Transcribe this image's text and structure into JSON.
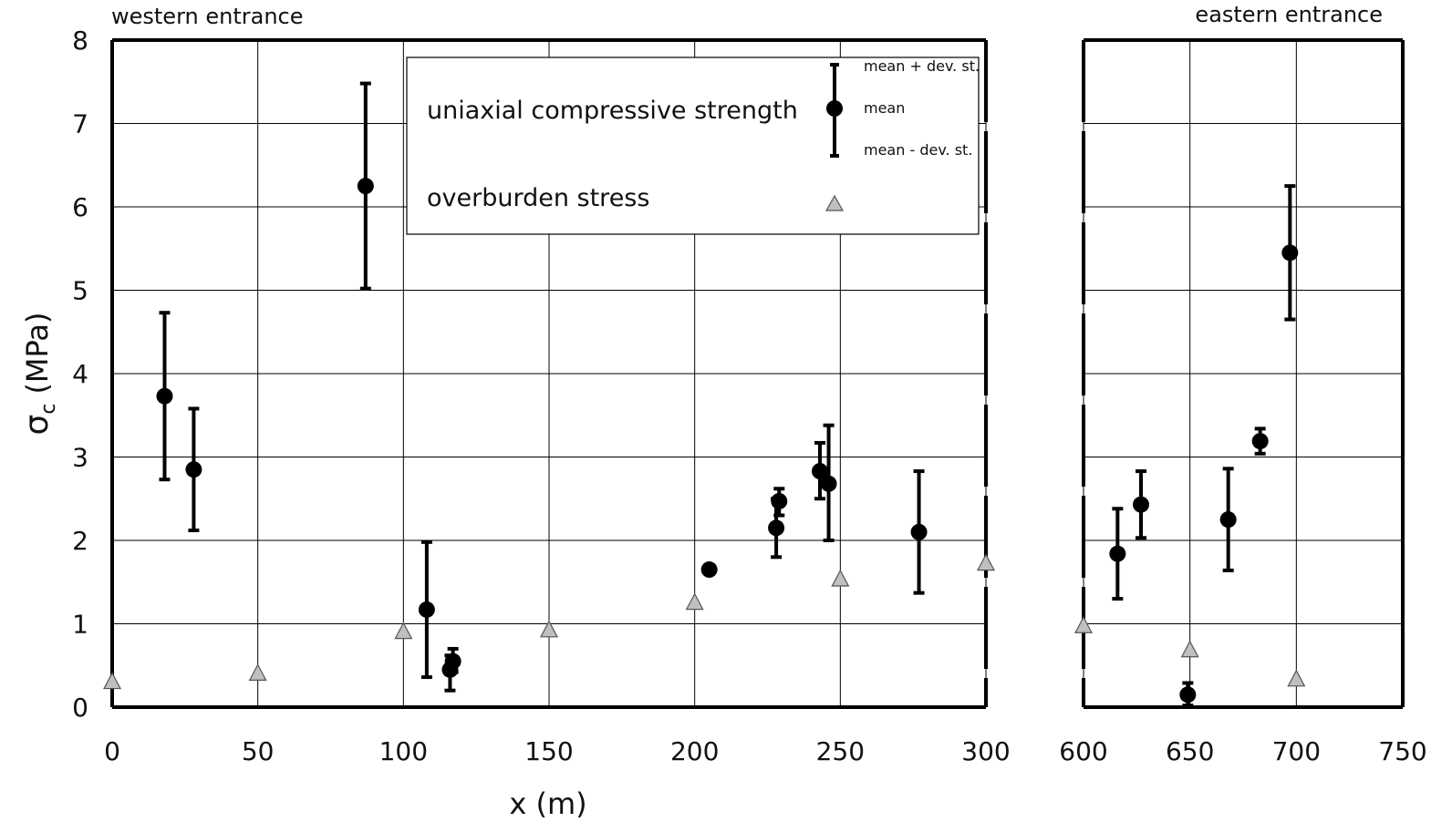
{
  "chart_data": {
    "type": "scatter",
    "title": "",
    "xlabel": "x (m)",
    "ylabel_symbol": "σ",
    "ylabel_subscript": "c",
    "ylabel_unit": "(MPa)",
    "ylim": [
      0,
      8
    ],
    "yticks": [
      "0",
      "1",
      "2",
      "3",
      "4",
      "5",
      "6",
      "7",
      "8"
    ],
    "grid": true,
    "panels": [
      {
        "label": "western entrance",
        "xlim": [
          0,
          300
        ],
        "xticks": [
          "0",
          "50",
          "100",
          "150",
          "200",
          "250",
          "300"
        ]
      },
      {
        "label": "eastern entrance",
        "xlim": [
          600,
          750
        ],
        "xticks": [
          "600",
          "650",
          "700",
          "750"
        ]
      }
    ],
    "legend": {
      "position": "top",
      "ucs_label": "uniaxial compressive strength",
      "overburden_label": "overburden stress",
      "upper_label": "mean + dev. st.",
      "mean_label": "mean",
      "lower_label": "mean - dev. st."
    },
    "series": [
      {
        "name": "uniaxial compressive strength",
        "marker": "circle",
        "points": [
          {
            "x": 18,
            "mean": 3.73,
            "low": 2.73,
            "high": 4.73
          },
          {
            "x": 28,
            "mean": 2.85,
            "low": 2.12,
            "high": 3.58
          },
          {
            "x": 87,
            "mean": 6.25,
            "low": 5.02,
            "high": 7.48
          },
          {
            "x": 108,
            "mean": 1.17,
            "low": 0.36,
            "high": 1.98
          },
          {
            "x": 116,
            "mean": 0.45,
            "low": 0.2,
            "high": 0.62
          },
          {
            "x": 117,
            "mean": 0.55,
            "low": 0.42,
            "high": 0.7
          },
          {
            "x": 205,
            "mean": 1.65,
            "low": null,
            "high": null
          },
          {
            "x": 228,
            "mean": 2.15,
            "low": 1.8,
            "high": 2.5
          },
          {
            "x": 229,
            "mean": 2.47,
            "low": 2.3,
            "high": 2.62
          },
          {
            "x": 243,
            "mean": 2.83,
            "low": 2.5,
            "high": 3.17
          },
          {
            "x": 246,
            "mean": 2.68,
            "low": 2.0,
            "high": 3.38
          },
          {
            "x": 277,
            "mean": 2.1,
            "low": 1.37,
            "high": 2.83
          },
          {
            "x": 616,
            "mean": 1.84,
            "low": 1.3,
            "high": 2.38
          },
          {
            "x": 627,
            "mean": 2.43,
            "low": 2.03,
            "high": 2.83
          },
          {
            "x": 649,
            "mean": 0.15,
            "low": 0.02,
            "high": 0.29
          },
          {
            "x": 668,
            "mean": 2.25,
            "low": 1.64,
            "high": 2.86
          },
          {
            "x": 683,
            "mean": 3.19,
            "low": 3.04,
            "high": 3.34
          },
          {
            "x": 697,
            "mean": 5.45,
            "low": 4.65,
            "high": 6.25
          }
        ]
      },
      {
        "name": "overburden stress",
        "marker": "triangle",
        "points": [
          {
            "x": 0,
            "y": 0.3
          },
          {
            "x": 50,
            "y": 0.4
          },
          {
            "x": 100,
            "y": 0.9
          },
          {
            "x": 150,
            "y": 0.92
          },
          {
            "x": 200,
            "y": 1.25
          },
          {
            "x": 250,
            "y": 1.53
          },
          {
            "x": 300,
            "y": 1.72
          },
          {
            "x": 600,
            "y": 0.97
          },
          {
            "x": 650,
            "y": 0.68
          },
          {
            "x": 700,
            "y": 0.33
          }
        ]
      }
    ],
    "colors": {
      "ucs": "#000000",
      "overburden_fill": "#bfbfbf",
      "overburden_stroke": "#555555",
      "grid": "#000000"
    }
  }
}
